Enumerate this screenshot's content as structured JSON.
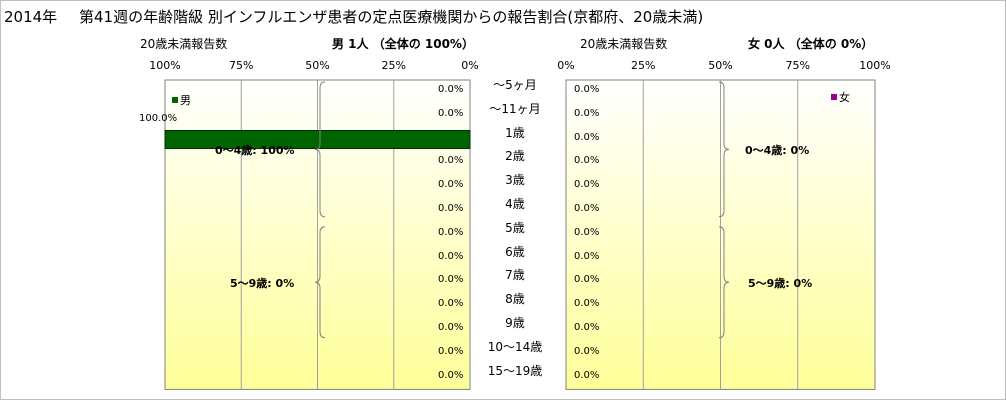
{
  "title": {
    "year": "2014年",
    "main": "第41週の年齢階級 別インフルエンザ患者の定点医療機関からの報告割合(京都府、20歳未満)"
  },
  "male": {
    "axis_caption": "20歳未満報告数",
    "heading": "男  1人 （全体の  100%）",
    "legend": "男",
    "bar_label": "100.0%",
    "group_labels": [
      "0～4歳: 100%",
      "5～9歳: 0%"
    ],
    "ticks": [
      "100%",
      "75%",
      "50%",
      "25%",
      "0%"
    ]
  },
  "female": {
    "axis_caption": "20歳未満報告数",
    "heading": "女  0人 （全体の  0%）",
    "legend": "女",
    "group_labels": [
      "0～4歳: 0%",
      "5～9歳: 0%"
    ],
    "ticks": [
      "0%",
      "25%",
      "50%",
      "75%",
      "100%"
    ]
  },
  "age_labels": [
    "～5ヶ月",
    "～11ヶ月",
    "1歳",
    "2歳",
    "3歳",
    "4歳",
    "5歳",
    "6歳",
    "7歳",
    "8歳",
    "9歳",
    "10～14歳",
    "15～19歳"
  ],
  "colors": {
    "male": "#006400",
    "female": "#990099",
    "plot_gradient_top": "#ffffff",
    "plot_gradient_bottom": "#ffff99"
  },
  "chart_data": [
    {
      "type": "bar",
      "orientation": "horizontal",
      "direction": "right-to-left",
      "series": [
        {
          "name": "男",
          "values": [
            0,
            0,
            100,
            0,
            0,
            0,
            0,
            0,
            0,
            0,
            0,
            0,
            0
          ]
        }
      ],
      "categories": [
        "～5ヶ月",
        "～11ヶ月",
        "1歳",
        "2歳",
        "3歳",
        "4歳",
        "5歳",
        "6歳",
        "7歳",
        "8歳",
        "9歳",
        "10～14歳",
        "15～19歳"
      ],
      "value_labels": [
        "0.0%",
        "0.0%",
        "100.0%",
        "0.0%",
        "0.0%",
        "0.0%",
        "0.0%",
        "0.0%",
        "0.0%",
        "0.0%",
        "0.0%",
        "0.0%",
        "0.0%"
      ],
      "xlim": [
        0,
        100
      ],
      "grid": true,
      "legend": "top-left"
    },
    {
      "type": "bar",
      "orientation": "horizontal",
      "direction": "left-to-right",
      "series": [
        {
          "name": "女",
          "values": [
            0,
            0,
            0,
            0,
            0,
            0,
            0,
            0,
            0,
            0,
            0,
            0,
            0
          ]
        }
      ],
      "categories": [
        "～5ヶ月",
        "～11ヶ月",
        "1歳",
        "2歳",
        "3歳",
        "4歳",
        "5歳",
        "6歳",
        "7歳",
        "8歳",
        "9歳",
        "10～14歳",
        "15～19歳"
      ],
      "value_labels": [
        "0.0%",
        "0.0%",
        "0.0%",
        "0.0%",
        "0.0%",
        "0.0%",
        "0.0%",
        "0.0%",
        "0.0%",
        "0.0%",
        "0.0%",
        "0.0%",
        "0.0%"
      ],
      "xlim": [
        0,
        100
      ],
      "grid": true,
      "legend": "top-right"
    }
  ]
}
